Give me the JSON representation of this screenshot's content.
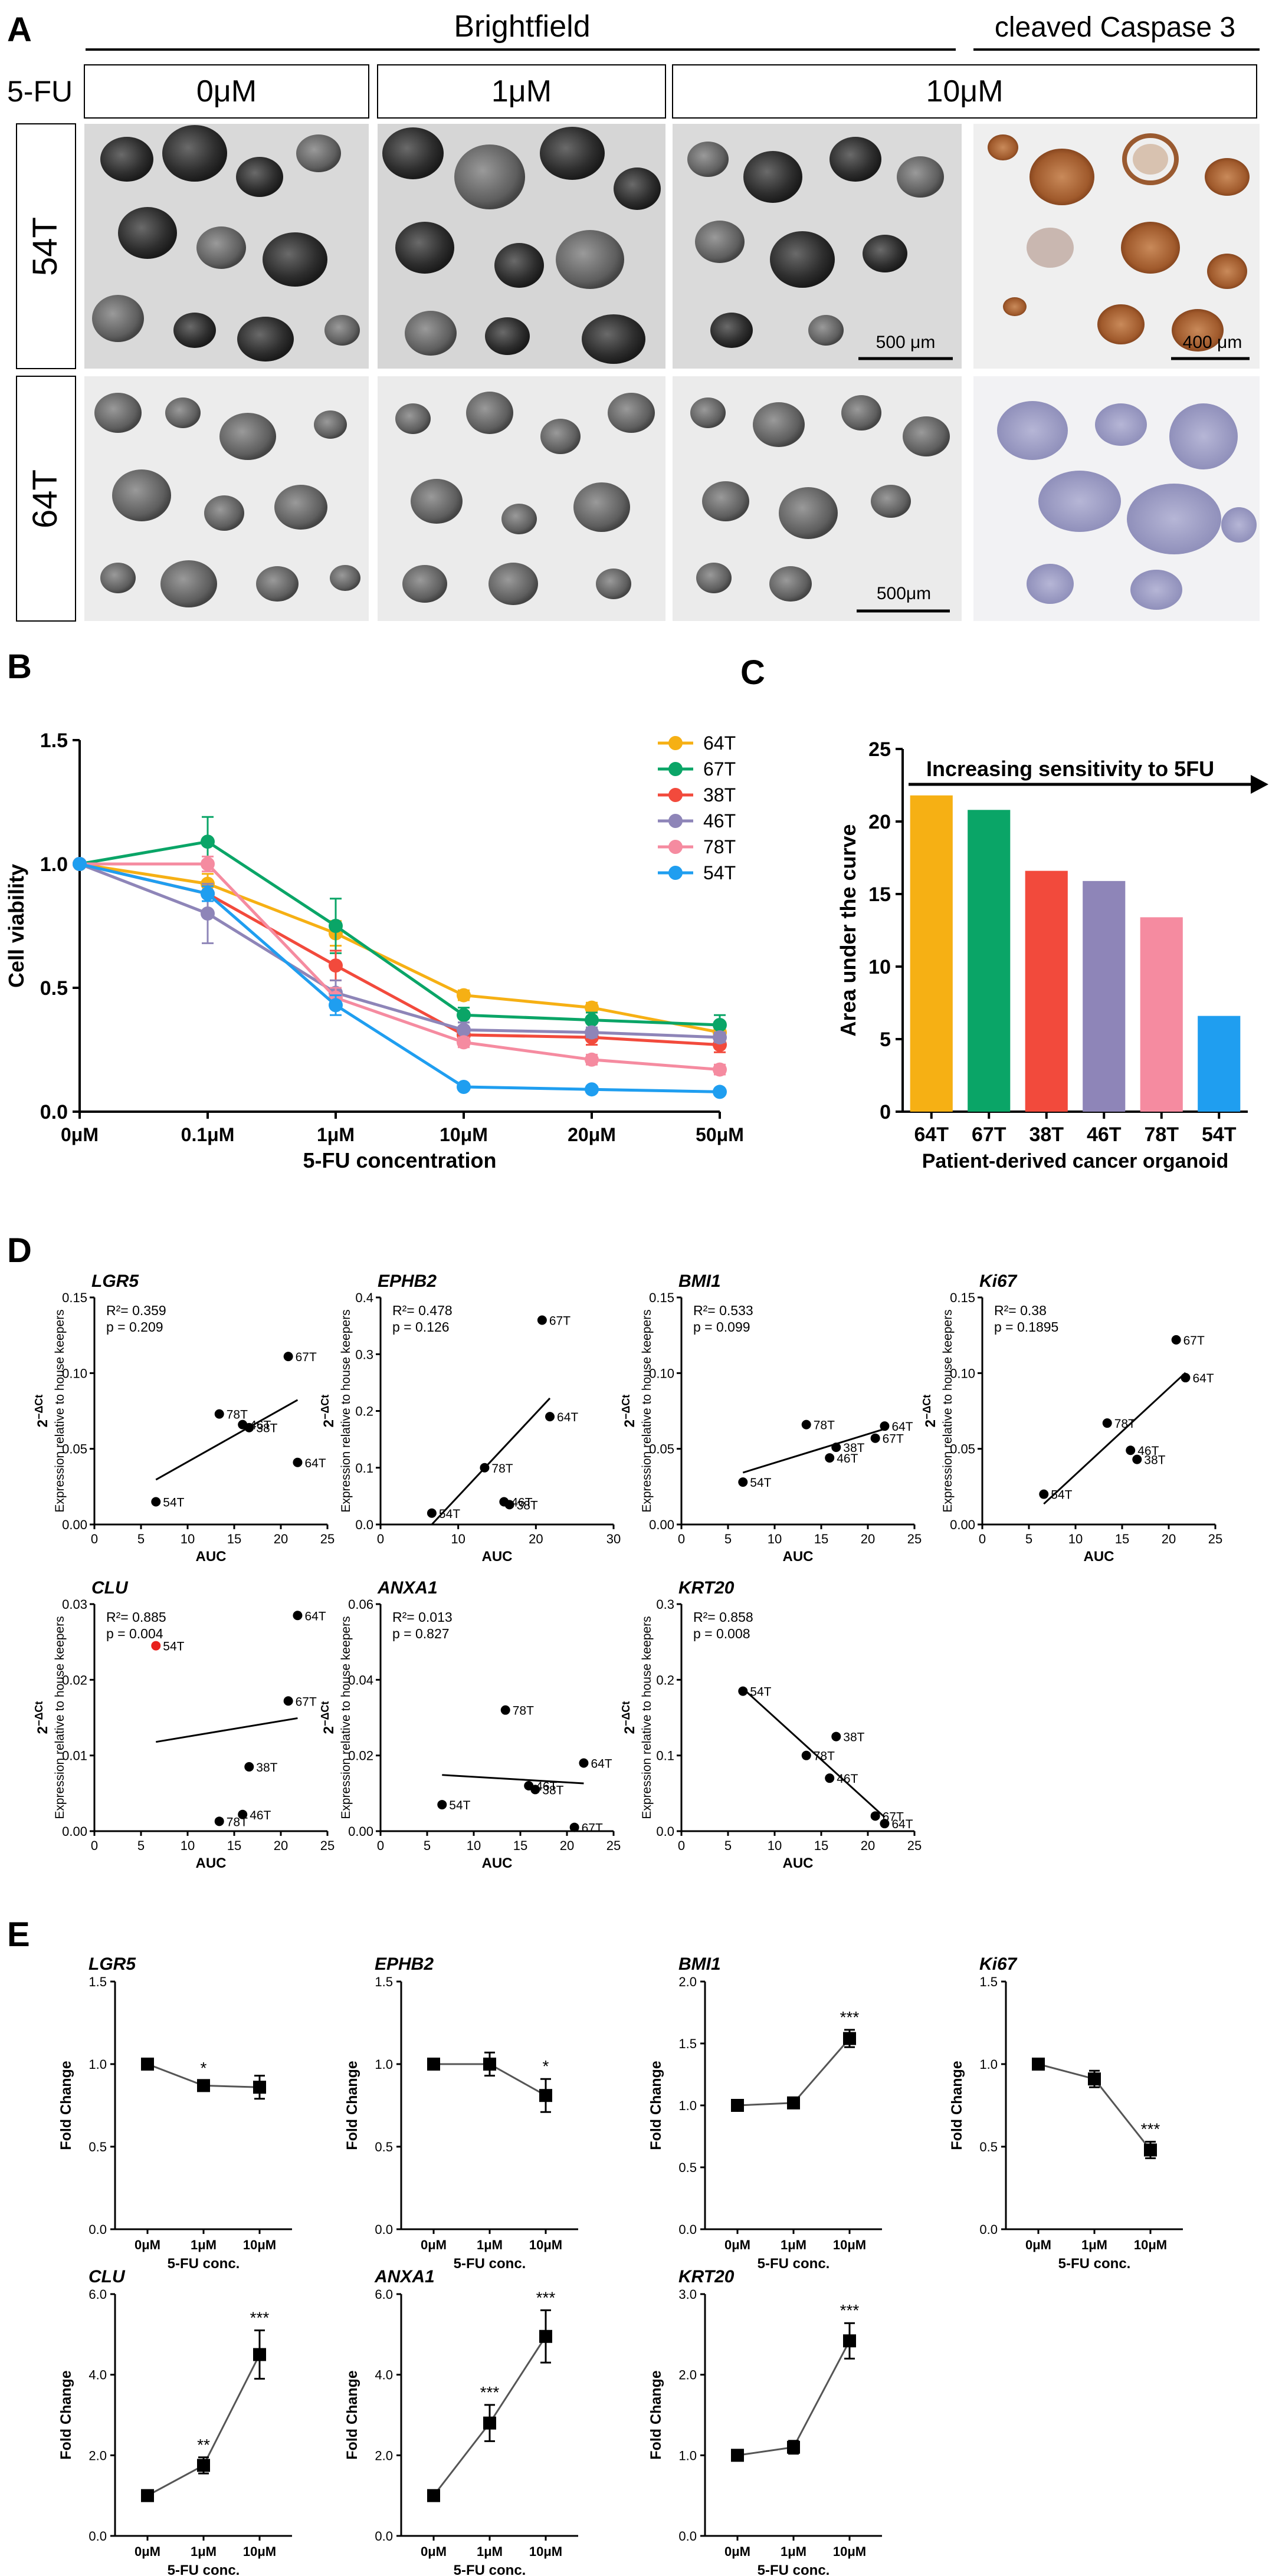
{
  "panelA": {
    "letter": "A",
    "header_brightfield": "Brightfield",
    "header_caspase": "cleaved Caspase 3",
    "drug_label": "5-FU",
    "conc_labels": [
      "0μM",
      "1μM",
      "10μM"
    ],
    "row_labels": [
      "54T",
      "64T"
    ],
    "scalebars": [
      "500 μm",
      "400 μm",
      "500μm"
    ]
  },
  "panelB": {
    "letter": "B",
    "chart_data": {
      "type": "line",
      "title": "",
      "xlabel": "5-FU concentration",
      "ylabel": "Cell viability",
      "categories": [
        "0μM",
        "0.1μM",
        "1μM",
        "10μM",
        "20μM",
        "50μM"
      ],
      "ylim": [
        0,
        1.5
      ],
      "yticks": [
        "0.0",
        "0.5",
        "1.0",
        "1.5"
      ],
      "series": [
        {
          "name": "64T",
          "color": "#f6b014",
          "values": [
            1.0,
            0.92,
            0.72,
            0.47,
            0.42,
            0.32
          ],
          "err": [
            0,
            0.04,
            0.05,
            0.02,
            0.02,
            0.02
          ]
        },
        {
          "name": "67T",
          "color": "#0aa567",
          "values": [
            1.0,
            1.09,
            0.75,
            0.39,
            0.37,
            0.35
          ],
          "err": [
            0,
            0.1,
            0.11,
            0.03,
            0.03,
            0.04
          ]
        },
        {
          "name": "38T",
          "color": "#f24a3c",
          "values": [
            1.0,
            0.88,
            0.59,
            0.31,
            0.3,
            0.27
          ],
          "err": [
            0,
            0.03,
            0.06,
            0.03,
            0.03,
            0.03
          ]
        },
        {
          "name": "46T",
          "color": "#8e85b8",
          "values": [
            1.0,
            0.8,
            0.48,
            0.33,
            0.32,
            0.3
          ],
          "err": [
            0,
            0.12,
            0.05,
            0.03,
            0.02,
            0.02
          ]
        },
        {
          "name": "78T",
          "color": "#f58ba0",
          "values": [
            1.0,
            1.0,
            0.46,
            0.28,
            0.21,
            0.17
          ],
          "err": [
            0,
            0.03,
            0.04,
            0.02,
            0.02,
            0.02
          ]
        },
        {
          "name": "54T",
          "color": "#1f9ef0",
          "values": [
            1.0,
            0.88,
            0.43,
            0.1,
            0.09,
            0.08
          ],
          "err": [
            0,
            0.03,
            0.04,
            0.01,
            0.01,
            0.01
          ]
        }
      ]
    }
  },
  "panelC": {
    "letter": "C",
    "chart_data": {
      "type": "bar",
      "title": "Increasing sensitivity to 5FU",
      "xlabel": "Patient-derived cancer organoid",
      "ylabel": "Area under the curve",
      "categories": [
        "64T",
        "67T",
        "38T",
        "46T",
        "78T",
        "54T"
      ],
      "values": [
        21.8,
        20.8,
        16.6,
        15.9,
        13.4,
        6.6
      ],
      "colors": [
        "#f6b014",
        "#0aa567",
        "#f24a3c",
        "#8e85b8",
        "#f58ba0",
        "#1f9ef0"
      ],
      "ylim": [
        0,
        25
      ],
      "yticks": [
        "0",
        "5",
        "10",
        "15",
        "20",
        "25"
      ]
    }
  },
  "panelD": {
    "letter": "D",
    "xlabel": "AUC",
    "ylabel_main": "2",
    "ylabel_sup": "−ΔCt",
    "ylabel_sub": "Expression relative to house keepers",
    "chart_data": [
      {
        "type": "scatter",
        "title": "LGR5",
        "r2": "R²= 0.359",
        "p": "p = 0.209",
        "xlim": [
          0,
          25
        ],
        "xticks": [
          "0",
          "5",
          "10",
          "15",
          "20",
          "25"
        ],
        "ylim": [
          0,
          0.15
        ],
        "yticks": [
          "0.00",
          "0.05",
          "0.10",
          "0.15"
        ],
        "points": [
          {
            "label": "54T",
            "x": 6.6,
            "y": 0.015
          },
          {
            "label": "78T",
            "x": 13.4,
            "y": 0.073
          },
          {
            "label": "46T",
            "x": 15.9,
            "y": 0.066
          },
          {
            "label": "38T",
            "x": 16.6,
            "y": 0.064
          },
          {
            "label": "67T",
            "x": 20.8,
            "y": 0.111
          },
          {
            "label": "64T",
            "x": 21.8,
            "y": 0.041
          }
        ]
      },
      {
        "type": "scatter",
        "title": "EPHB2",
        "r2": "R²= 0.478",
        "p": "p = 0.126",
        "xlim": [
          0,
          30
        ],
        "xticks": [
          "0",
          "10",
          "20",
          "30"
        ],
        "ylim": [
          0,
          0.4
        ],
        "yticks": [
          "0.0",
          "0.1",
          "0.2",
          "0.3",
          "0.4"
        ],
        "points": [
          {
            "label": "54T",
            "x": 6.6,
            "y": 0.02
          },
          {
            "label": "78T",
            "x": 13.4,
            "y": 0.1
          },
          {
            "label": "46T",
            "x": 15.9,
            "y": 0.04
          },
          {
            "label": "38T",
            "x": 16.6,
            "y": 0.035
          },
          {
            "label": "67T",
            "x": 20.8,
            "y": 0.36
          },
          {
            "label": "64T",
            "x": 21.8,
            "y": 0.19
          }
        ]
      },
      {
        "type": "scatter",
        "title": "BMI1",
        "r2": "R²= 0.533",
        "p": "p = 0.099",
        "xlim": [
          0,
          25
        ],
        "xticks": [
          "0",
          "5",
          "10",
          "15",
          "20",
          "25"
        ],
        "ylim": [
          0,
          0.15
        ],
        "yticks": [
          "0.00",
          "0.05",
          "0.10",
          "0.15"
        ],
        "points": [
          {
            "label": "54T",
            "x": 6.6,
            "y": 0.028
          },
          {
            "label": "78T",
            "x": 13.4,
            "y": 0.066
          },
          {
            "label": "46T",
            "x": 15.9,
            "y": 0.044
          },
          {
            "label": "38T",
            "x": 16.6,
            "y": 0.051
          },
          {
            "label": "67T",
            "x": 20.8,
            "y": 0.057
          },
          {
            "label": "64T",
            "x": 21.8,
            "y": 0.065
          }
        ]
      },
      {
        "type": "scatter",
        "title": "Ki67",
        "r2": "R²= 0.38",
        "p": "p = 0.1895",
        "xlim": [
          0,
          25
        ],
        "xticks": [
          "0",
          "5",
          "10",
          "15",
          "20",
          "25"
        ],
        "ylim": [
          0,
          0.15
        ],
        "yticks": [
          "0.00",
          "0.05",
          "0.10",
          "0.15"
        ],
        "points": [
          {
            "label": "54T",
            "x": 6.6,
            "y": 0.02
          },
          {
            "label": "78T",
            "x": 13.4,
            "y": 0.067
          },
          {
            "label": "46T",
            "x": 15.9,
            "y": 0.049
          },
          {
            "label": "38T",
            "x": 16.6,
            "y": 0.043
          },
          {
            "label": "67T",
            "x": 20.8,
            "y": 0.122
          },
          {
            "label": "64T",
            "x": 21.8,
            "y": 0.097
          }
        ]
      },
      {
        "type": "scatter",
        "title": "CLU",
        "r2": "R²= 0.885",
        "p": "p = 0.004",
        "xlim": [
          0,
          25
        ],
        "xticks": [
          "0",
          "5",
          "10",
          "15",
          "20",
          "25"
        ],
        "ylim": [
          0,
          0.03
        ],
        "yticks": [
          "0.00",
          "0.01",
          "0.02",
          "0.03"
        ],
        "points": [
          {
            "label": "54T",
            "x": 6.6,
            "y": 0.0245,
            "highlight": true
          },
          {
            "label": "78T",
            "x": 13.4,
            "y": 0.0013
          },
          {
            "label": "46T",
            "x": 15.9,
            "y": 0.0022
          },
          {
            "label": "38T",
            "x": 16.6,
            "y": 0.0085
          },
          {
            "label": "67T",
            "x": 20.8,
            "y": 0.0172
          },
          {
            "label": "64T",
            "x": 21.8,
            "y": 0.0285
          }
        ]
      },
      {
        "type": "scatter",
        "title": "ANXA1",
        "r2": "R²= 0.013",
        "p": "p = 0.827",
        "xlim": [
          0,
          25
        ],
        "xticks": [
          "0",
          "5",
          "10",
          "15",
          "20",
          "25"
        ],
        "ylim": [
          0,
          0.06
        ],
        "yticks": [
          "0.00",
          "0.02",
          "0.04",
          "0.06"
        ],
        "points": [
          {
            "label": "54T",
            "x": 6.6,
            "y": 0.007
          },
          {
            "label": "78T",
            "x": 13.4,
            "y": 0.032
          },
          {
            "label": "46T",
            "x": 15.9,
            "y": 0.012
          },
          {
            "label": "38T",
            "x": 16.6,
            "y": 0.011
          },
          {
            "label": "67T",
            "x": 20.8,
            "y": 0.001
          },
          {
            "label": "64T",
            "x": 21.8,
            "y": 0.018
          }
        ]
      },
      {
        "type": "scatter",
        "title": "KRT20",
        "r2": "R²= 0.858",
        "p": "p = 0.008",
        "xlim": [
          0,
          25
        ],
        "xticks": [
          "0",
          "5",
          "10",
          "15",
          "20",
          "25"
        ],
        "ylim": [
          0,
          0.3
        ],
        "yticks": [
          "0.0",
          "0.1",
          "0.2",
          "0.3"
        ],
        "points": [
          {
            "label": "54T",
            "x": 6.6,
            "y": 0.185
          },
          {
            "label": "78T",
            "x": 13.4,
            "y": 0.1
          },
          {
            "label": "46T",
            "x": 15.9,
            "y": 0.07
          },
          {
            "label": "38T",
            "x": 16.6,
            "y": 0.125
          },
          {
            "label": "67T",
            "x": 20.8,
            "y": 0.02
          },
          {
            "label": "64T",
            "x": 21.8,
            "y": 0.01
          }
        ]
      }
    ]
  },
  "panelE": {
    "letter": "E",
    "xlabel": "5-FU conc.",
    "ylabel": "Fold Change",
    "chart_data": [
      {
        "type": "line",
        "title": "LGR5",
        "categories": [
          "0μM",
          "1μM",
          "10μM"
        ],
        "values": [
          1.0,
          0.87,
          0.86
        ],
        "err": [
          0,
          0.03,
          0.07
        ],
        "sig": [
          "",
          "*",
          ""
        ],
        "ylim": [
          0,
          1.5
        ],
        "yticks": [
          "0.0",
          "0.5",
          "1.0",
          "1.5"
        ]
      },
      {
        "type": "line",
        "title": "EPHB2",
        "categories": [
          "0μM",
          "1μM",
          "10μM"
        ],
        "values": [
          1.0,
          1.0,
          0.81
        ],
        "err": [
          0,
          0.07,
          0.1
        ],
        "sig": [
          "",
          "",
          "*"
        ],
        "ylim": [
          0,
          1.5
        ],
        "yticks": [
          "0.0",
          "0.5",
          "1.0",
          "1.5"
        ]
      },
      {
        "type": "line",
        "title": "BMI1",
        "categories": [
          "0μM",
          "1μM",
          "10μM"
        ],
        "values": [
          1.0,
          1.02,
          1.54
        ],
        "err": [
          0,
          0.03,
          0.07
        ],
        "sig": [
          "",
          "",
          "***"
        ],
        "ylim": [
          0,
          2.0
        ],
        "yticks": [
          "0.0",
          "0.5",
          "1.0",
          "1.5",
          "2.0"
        ]
      },
      {
        "type": "line",
        "title": "Ki67",
        "categories": [
          "0μM",
          "1μM",
          "10μM"
        ],
        "values": [
          1.0,
          0.91,
          0.48
        ],
        "err": [
          0,
          0.05,
          0.05
        ],
        "sig": [
          "",
          "",
          "***"
        ],
        "ylim": [
          0,
          1.5
        ],
        "yticks": [
          "0.0",
          "0.5",
          "1.0",
          "1.5"
        ]
      },
      {
        "type": "line",
        "title": "CLU",
        "categories": [
          "0μM",
          "1μM",
          "10μM"
        ],
        "values": [
          1.0,
          1.75,
          4.5
        ],
        "err": [
          0,
          0.2,
          0.6
        ],
        "sig": [
          "",
          "**",
          "***"
        ],
        "ylim": [
          0,
          6.0
        ],
        "yticks": [
          "0.0",
          "2.0",
          "4.0",
          "6.0"
        ]
      },
      {
        "type": "line",
        "title": "ANXA1",
        "categories": [
          "0μM",
          "1μM",
          "10μM"
        ],
        "values": [
          1.0,
          2.8,
          4.95
        ],
        "err": [
          0,
          0.45,
          0.65
        ],
        "sig": [
          "",
          "***",
          "***"
        ],
        "ylim": [
          0,
          6.0
        ],
        "yticks": [
          "0.0",
          "2.0",
          "4.0",
          "6.0"
        ]
      },
      {
        "type": "line",
        "title": "KRT20",
        "categories": [
          "0μM",
          "1μM",
          "10μM"
        ],
        "values": [
          1.0,
          1.1,
          2.42
        ],
        "err": [
          0,
          0.08,
          0.22
        ],
        "sig": [
          "",
          "",
          "***"
        ],
        "ylim": [
          0,
          3.0
        ],
        "yticks": [
          "0.0",
          "1.0",
          "2.0",
          "3.0"
        ]
      }
    ]
  }
}
